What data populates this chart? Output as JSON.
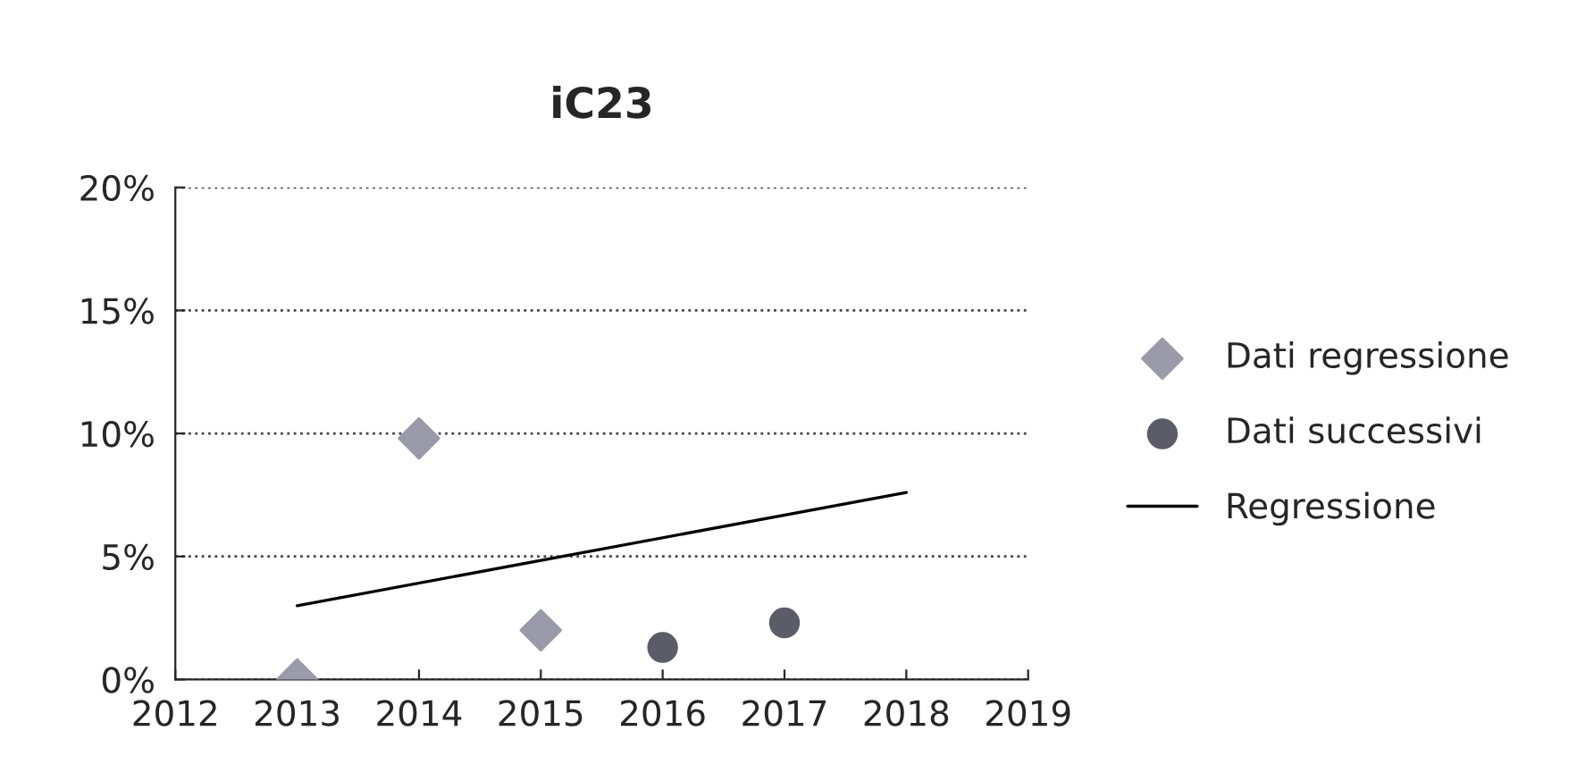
{
  "chart_data": {
    "type": "scatter",
    "title": "iC23",
    "xlim": [
      2012,
      2019
    ],
    "xticks": [
      2012,
      2013,
      2014,
      2015,
      2016,
      2017,
      2018,
      2019
    ],
    "ylim": [
      0,
      20
    ],
    "yticks": [
      {
        "value": 0,
        "label": "0%"
      },
      {
        "value": 5,
        "label": "5%"
      },
      {
        "value": 10,
        "label": "10%"
      },
      {
        "value": 15,
        "label": "15%"
      },
      {
        "value": 20,
        "label": "20%"
      }
    ],
    "grid": "y",
    "legend": "right",
    "series": [
      {
        "name": "Dati regressione",
        "marker": "diamond",
        "color": "#9a9aaa",
        "x": [
          2013,
          2014,
          2015
        ],
        "values": [
          0,
          9.8,
          2.0
        ]
      },
      {
        "name": "Dati successivi",
        "marker": "circle",
        "color": "#5c5c68",
        "x": [
          2016,
          2017
        ],
        "values": [
          1.3,
          2.3
        ]
      },
      {
        "name": "Regressione",
        "type": "line",
        "marker": "none",
        "line_style": "solid",
        "color": "#000000",
        "x": [
          2013,
          2018
        ],
        "values": [
          3.0,
          7.6
        ]
      }
    ]
  }
}
